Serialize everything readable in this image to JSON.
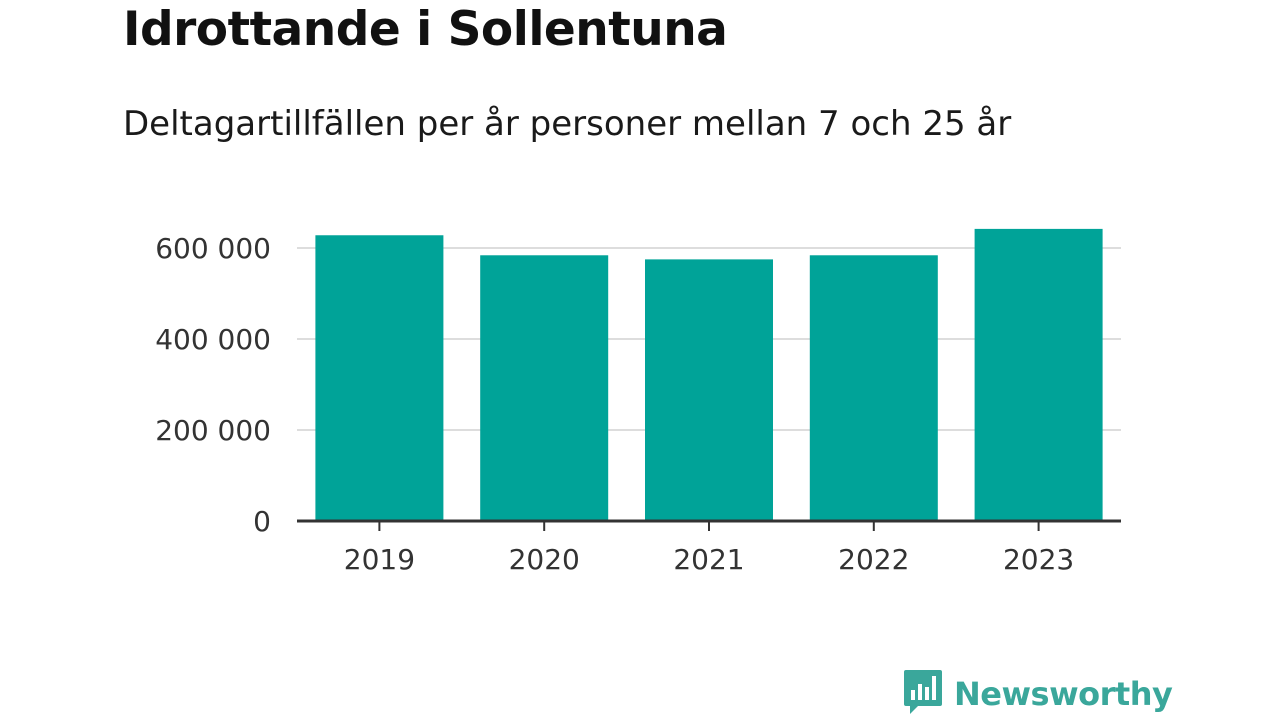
{
  "chart_data": {
    "type": "bar",
    "title": "Idrottande i Sollentuna",
    "subtitle": "Deltagartillfällen per år personer mellan 7 och 25 år",
    "categories": [
      "2019",
      "2020",
      "2021",
      "2022",
      "2023"
    ],
    "values": [
      628000,
      584000,
      575000,
      584000,
      642000
    ],
    "ylim": [
      0,
      700000
    ],
    "yticks": [
      0,
      200000,
      400000,
      600000
    ],
    "ytick_labels": [
      "0",
      "200 000",
      "400 000",
      "600 000"
    ],
    "xlabel": "",
    "ylabel": "",
    "grid": true,
    "legend": "none",
    "bar_color": "#00a398",
    "grid_color": "#dddddd",
    "axis_color": "#333333"
  },
  "brand": {
    "name": "Newsworthy",
    "icon": "newsworthy-logo-icon",
    "color": "#3aa79b"
  }
}
